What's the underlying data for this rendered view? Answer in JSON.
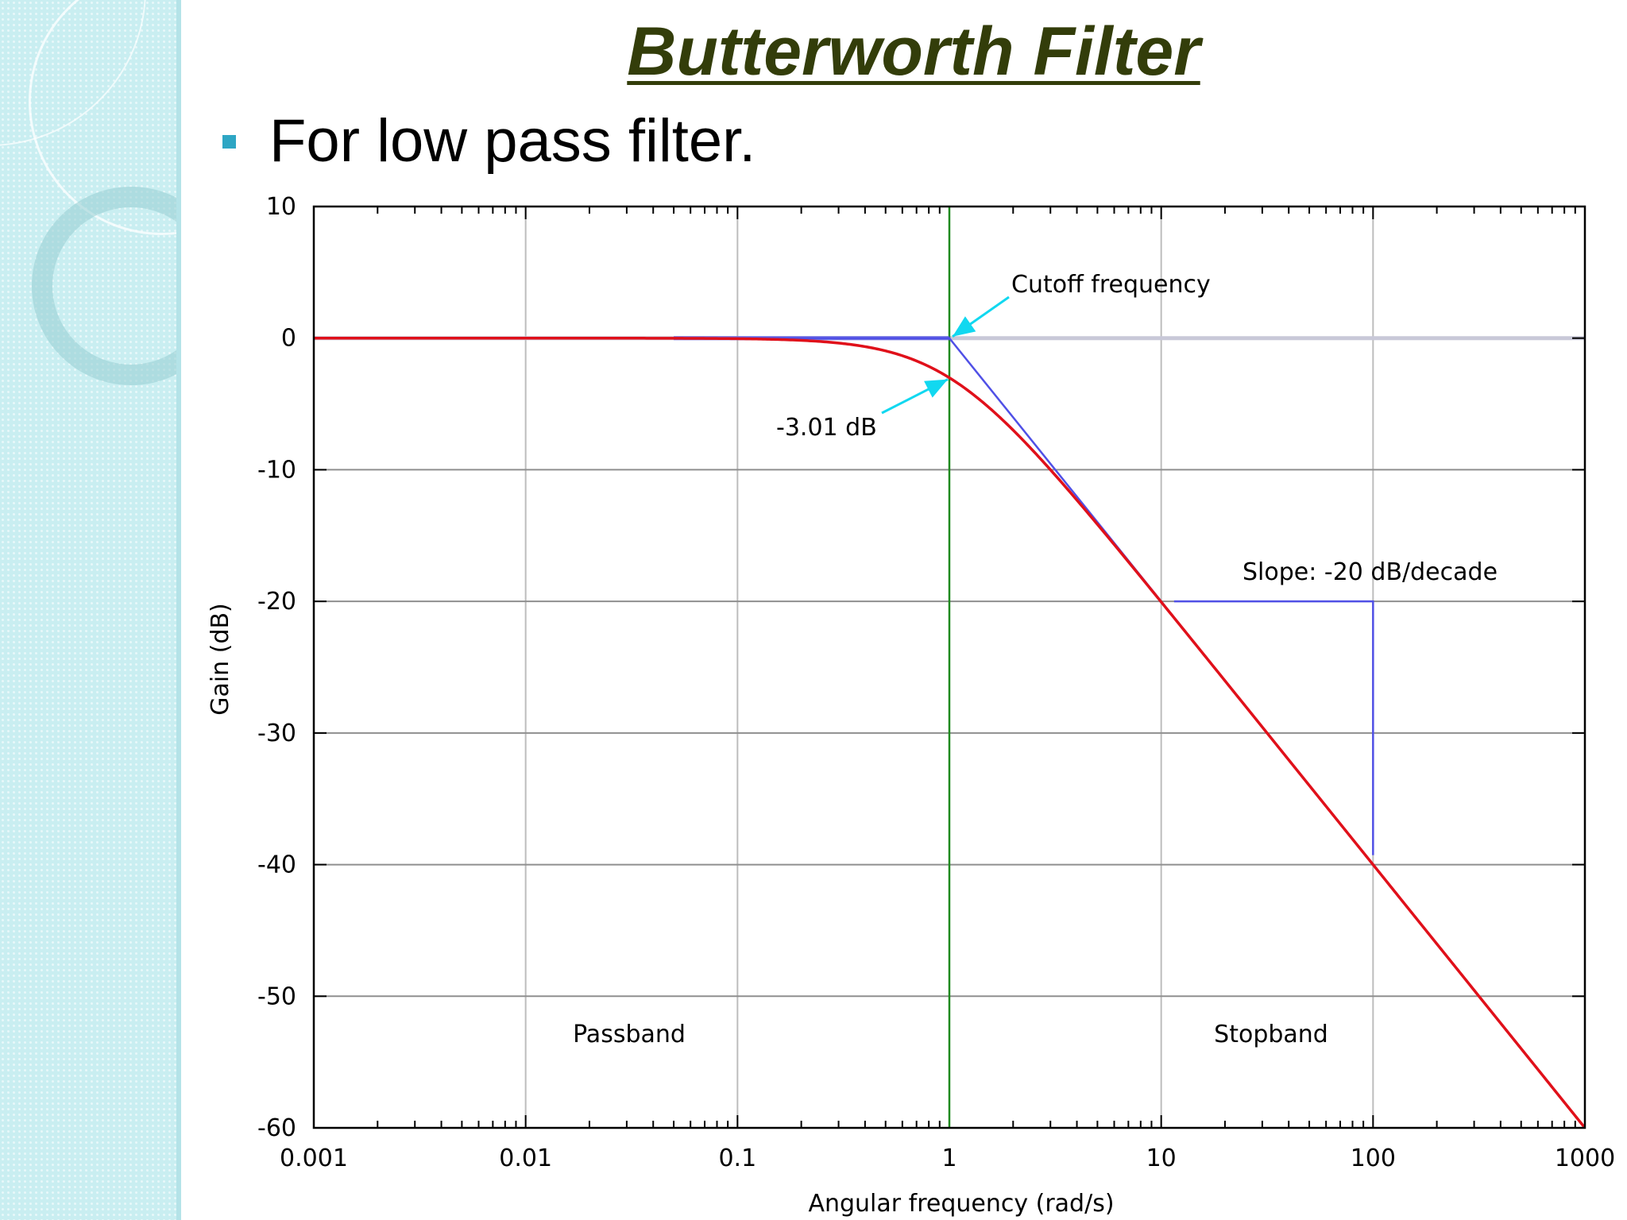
{
  "slide": {
    "title": "Butterworth Filter",
    "bullet": "For low pass filter."
  },
  "chart_data": {
    "type": "line",
    "xscale": "log",
    "xlim": [
      0.001,
      1000
    ],
    "ylim": [
      -60,
      10
    ],
    "xticks": [
      0.001,
      0.01,
      0.1,
      1,
      10,
      100,
      1000
    ],
    "xtick_labels": [
      "0.001",
      "0.01",
      "0.1",
      "1",
      "10",
      "100",
      "1000"
    ],
    "yticks": [
      10,
      0,
      -10,
      -20,
      -30,
      -40,
      -50,
      -60
    ],
    "ytick_labels": [
      "10",
      "0",
      "-10",
      "-20",
      "-30",
      "-40",
      "-50",
      "-60"
    ],
    "xlabel": "Angular frequency (rad/s)",
    "ylabel": "Gain (dB)",
    "grid": true,
    "legend": "none",
    "series": [
      {
        "color": "#e0101a",
        "x": [
          0.001,
          0.01,
          0.1,
          0.2,
          0.3,
          0.4,
          0.5,
          0.6,
          0.7,
          0.8,
          0.9,
          1,
          1.2,
          1.5,
          2,
          2.5,
          3,
          4,
          5,
          7,
          10,
          20,
          50,
          100,
          200,
          500,
          1000
        ],
        "y": [
          0,
          0,
          -0.04,
          -0.17,
          -0.37,
          -0.64,
          -0.97,
          -1.34,
          -1.73,
          -2.15,
          -2.58,
          -3.01,
          -3.87,
          -5.11,
          -6.99,
          -8.6,
          -10.0,
          -12.3,
          -14.15,
          -17.0,
          -20.04,
          -26.03,
          -33.98,
          -40.0,
          -46.02,
          -53.98,
          -60.0
        ]
      },
      {
        "color": "#5050e6",
        "x": [
          0.001,
          1,
          1000
        ],
        "y": [
          0,
          0,
          -60
        ]
      }
    ],
    "annotations": {
      "cutoff_label": "Cutoff frequency",
      "db_label": "-3.01 dB",
      "slope_label": "Slope: -20 dB/decade",
      "passband_label": "Passband",
      "stopband_label": "Stopband"
    },
    "colors": {
      "response": "#e0101a",
      "asymptote": "#5050e6",
      "cutoff_line": "#1f8a1f",
      "arrow": "#11d8f0",
      "zero_line": "#c8c8d8"
    }
  }
}
